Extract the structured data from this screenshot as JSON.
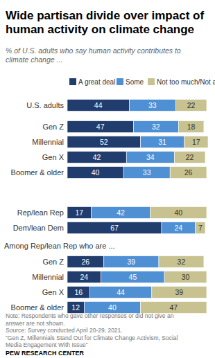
{
  "chart_data": {
    "type": "bar",
    "orientation": "horizontal",
    "stacked": true,
    "data_labels": true,
    "tick_labels": "y",
    "grid": false,
    "legend": "top",
    "title": [
      "Wide partisan divide over impact of",
      "human activity on climate change"
    ],
    "subtitle": [
      "% of U.S. adults who say human activity contributes to",
      "climate change ..."
    ],
    "categories": [
      "U.S. adults",
      "Gen Z",
      "Millennial",
      "Gen X",
      "Boomer & older",
      "Rep/lean Rep",
      "Dem/lean Dem",
      "Gen Z",
      "Millennial",
      "Gen X",
      "Boomer & older"
    ],
    "annotations": [
      "Among Rep/lean Rep who are ..."
    ],
    "xlim": [
      0,
      100
    ],
    "series": [
      {
        "name": "A great deal",
        "color": "#203d6e",
        "values": [
          44,
          47,
          52,
          42,
          40,
          17,
          67,
          26,
          24,
          16,
          12
        ]
      },
      {
        "name": "Some",
        "color": "#4f8fd4",
        "values": [
          33,
          32,
          31,
          34,
          33,
          42,
          24,
          39,
          45,
          44,
          40
        ]
      },
      {
        "name": "Not too much/Not at all",
        "color": "#c7c290",
        "values": [
          22,
          18,
          17,
          22,
          26,
          40,
          7,
          32,
          30,
          39,
          47
        ]
      }
    ],
    "notes": [
      "Note: Respondents who gave other responses or did not give an",
      "answer are not shown."
    ],
    "source": "Source: Survey conducted April 20-29, 2021.",
    "report": [
      "“Gen Z, Millennials Stand Out for Climate Change Activism, Social",
      "Media Engagement With Issue”"
    ],
    "credit": "PEW RESEARCH CENTER"
  }
}
